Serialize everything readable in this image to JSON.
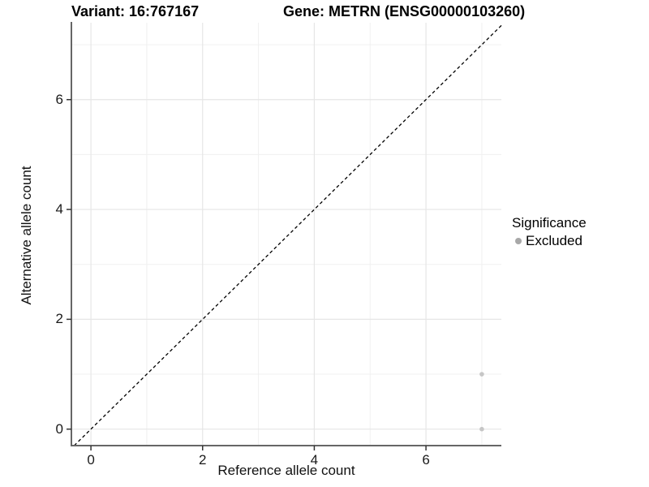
{
  "header": {
    "title_left": "Variant: 16:767167",
    "title_right": "Gene: METRN (ENSG00000103260)"
  },
  "chart_data": {
    "type": "scatter",
    "title": "Variant: 16:767167 — Gene: METRN (ENSG00000103260)",
    "xlabel": "Reference allele count",
    "ylabel": "Alternative allele count",
    "xlim": [
      -0.35,
      7.35
    ],
    "ylim": [
      -0.3,
      7.4
    ],
    "x_ticks": [
      0,
      2,
      4,
      6
    ],
    "y_ticks": [
      0,
      2,
      4,
      6
    ],
    "x_minor_ticks": [
      1,
      3,
      5,
      7
    ],
    "y_minor_ticks": [
      1,
      3,
      5,
      7
    ],
    "grid": true,
    "series": [
      {
        "name": "Excluded",
        "points": [
          {
            "x": 7,
            "y": 1
          },
          {
            "x": 7,
            "y": 0
          }
        ],
        "color": "#c6c6c6",
        "point_radius": 2.8
      }
    ],
    "reference_line": {
      "slope": 1,
      "intercept": 0,
      "style": "dashed",
      "color": "#000000"
    },
    "legend": {
      "position": "right",
      "title": "Significance",
      "entries": [
        {
          "label": "Excluded",
          "color": "#a8a8a8"
        }
      ]
    },
    "colors": {
      "major_grid": "#e6e6e6",
      "minor_grid": "#f0f0f0",
      "axis_line": "#666666",
      "tick_mark": "#333333",
      "background": "#ffffff"
    }
  }
}
